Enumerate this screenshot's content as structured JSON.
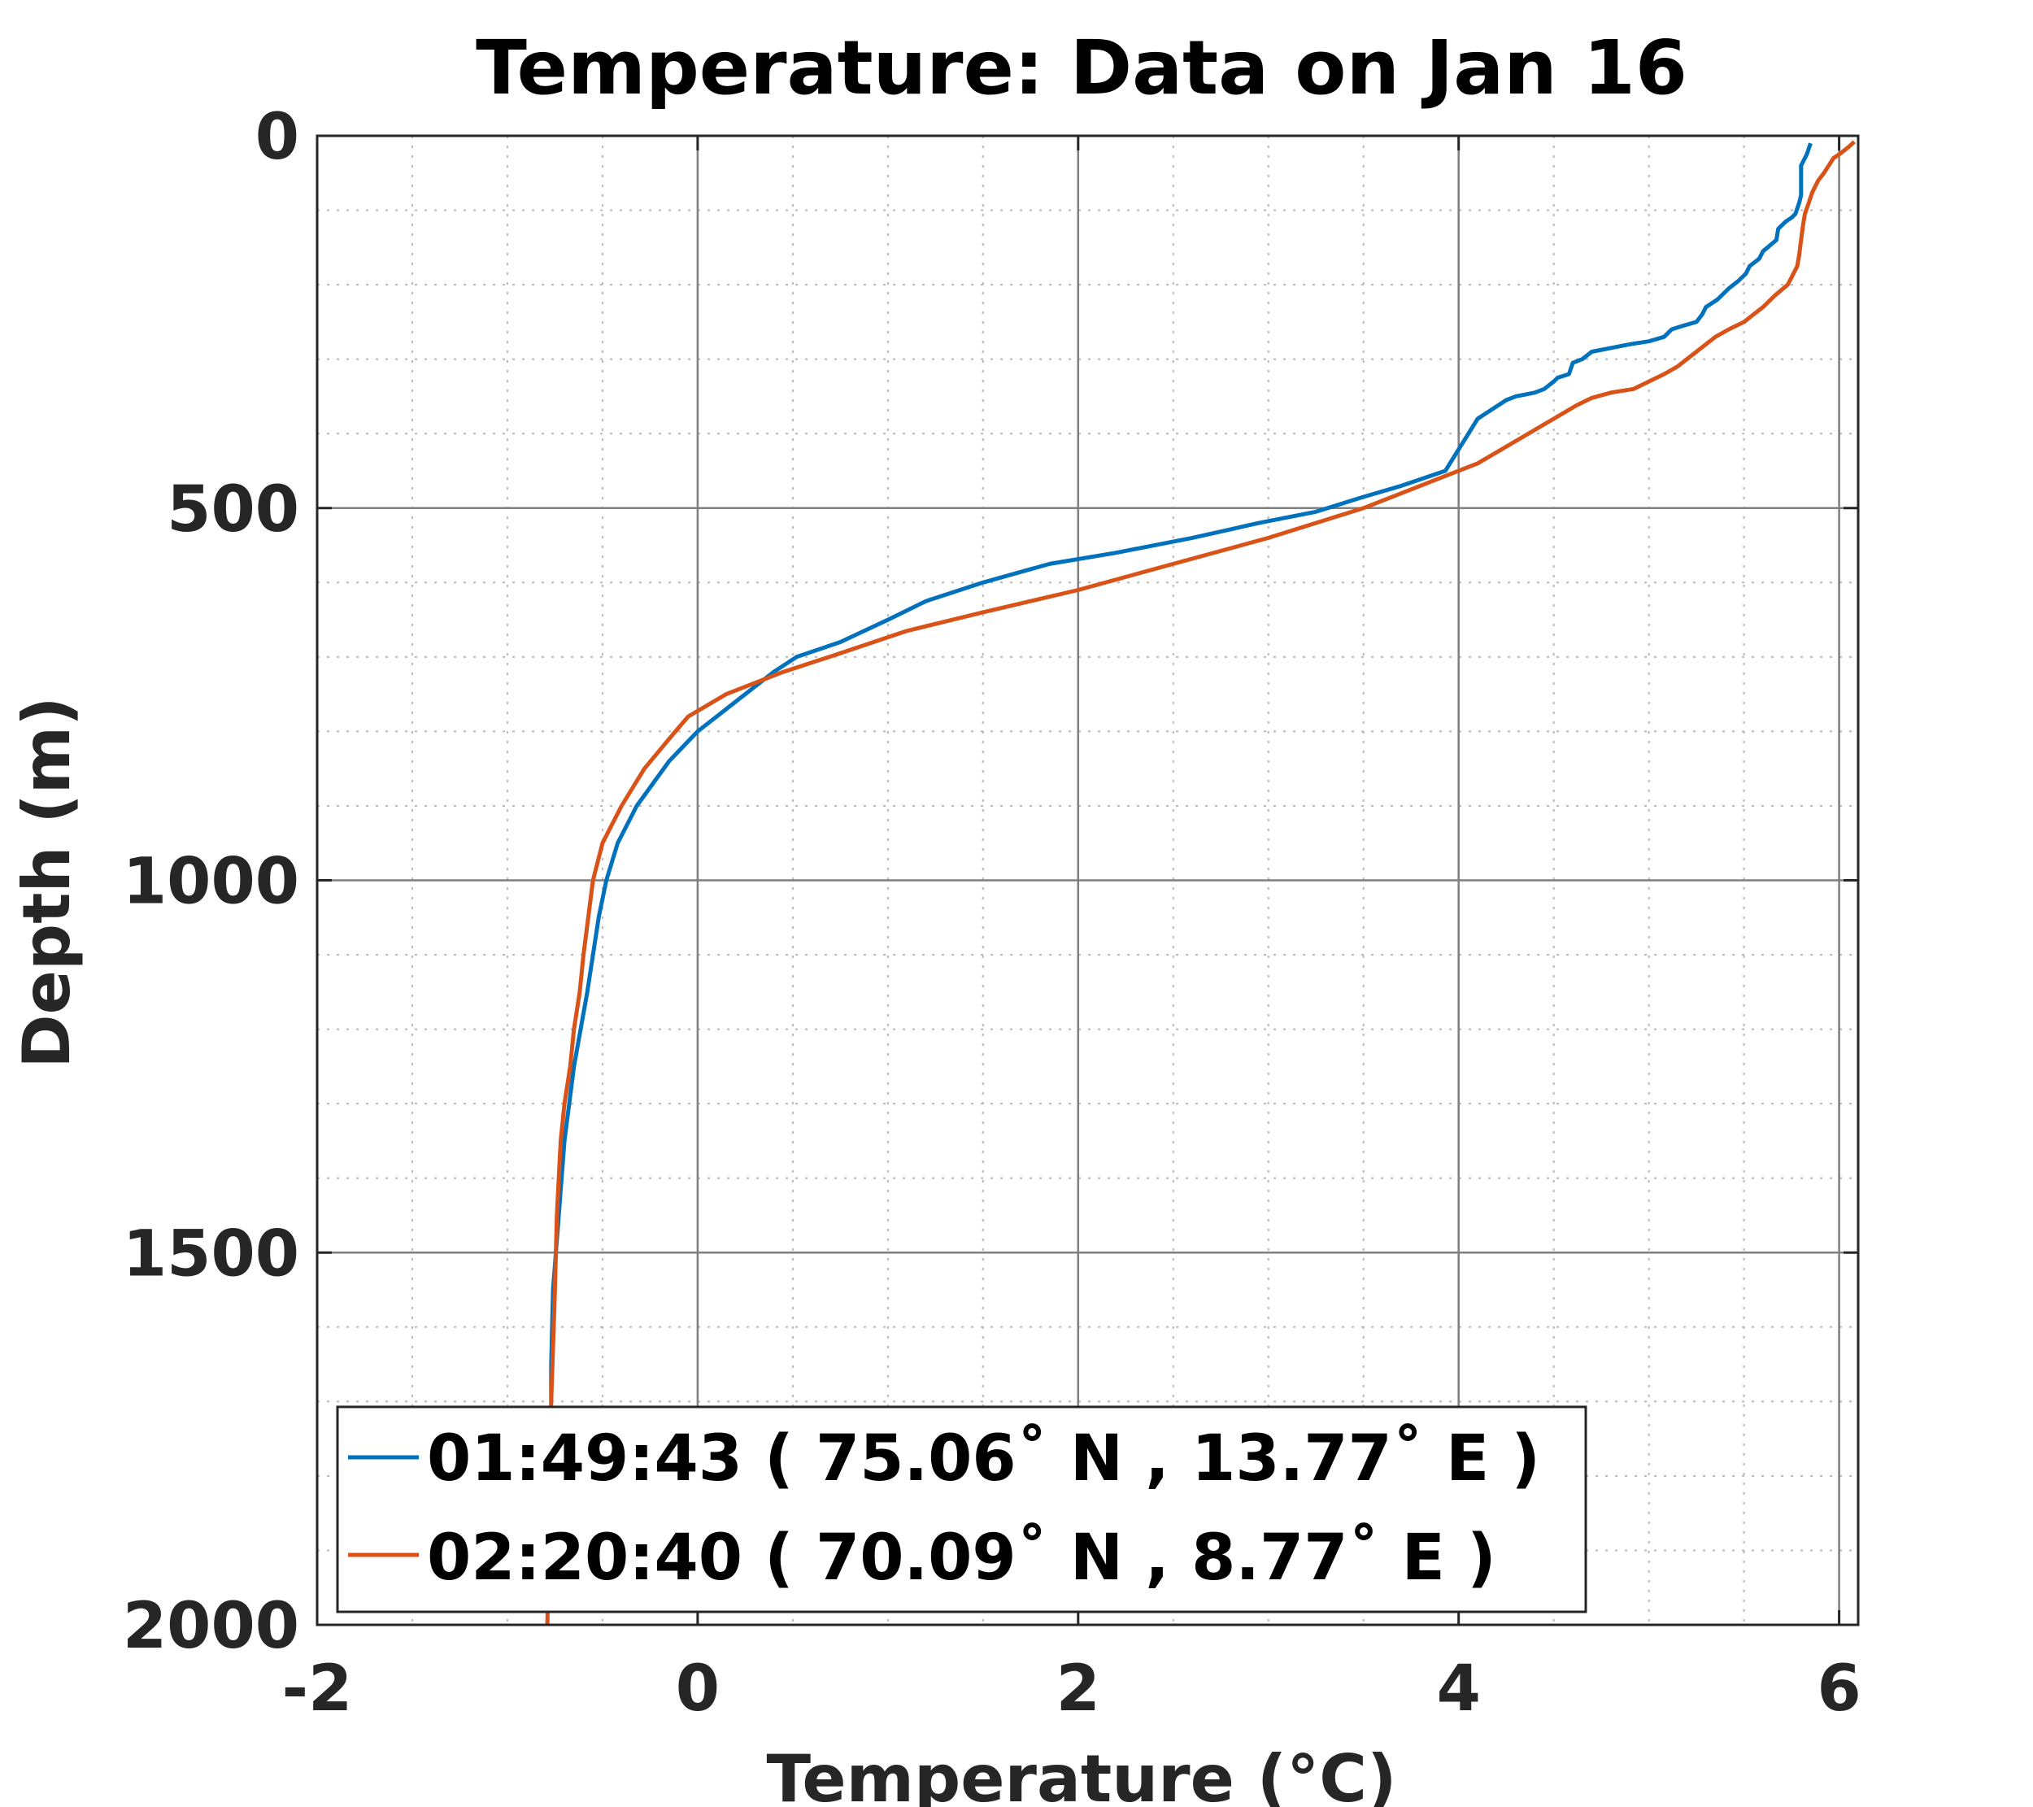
{
  "chart_data": {
    "type": "line",
    "title": "Temperature: Data on Jan 16",
    "xlabel": "Temperature (°C)",
    "ylabel": "Depth (m)",
    "xlim": [
      -2,
      6.1
    ],
    "ylim": [
      0,
      2000
    ],
    "y_reversed": true,
    "grid": true,
    "minor_grid": true,
    "x_ticks": [
      -2,
      0,
      2,
      4,
      6
    ],
    "x_tick_labels": [
      "-2",
      "0",
      "2",
      "4",
      "6"
    ],
    "y_ticks": [
      0,
      500,
      1000,
      1500,
      2000
    ],
    "y_tick_labels": [
      "0",
      "500",
      "1000",
      "1500",
      "2000"
    ],
    "legend_position": "bottom-left",
    "series": [
      {
        "name": "01:49:43 ( 75.06˚ N , 13.77˚ E )",
        "color": "#0072BD",
        "points": [
          [
            5.85,
            10
          ],
          [
            5.83,
            25
          ],
          [
            5.8,
            40
          ],
          [
            5.8,
            80
          ],
          [
            5.79,
            90
          ],
          [
            5.77,
            105
          ],
          [
            5.75,
            110
          ],
          [
            5.72,
            115
          ],
          [
            5.68,
            125
          ],
          [
            5.67,
            140
          ],
          [
            5.6,
            155
          ],
          [
            5.58,
            165
          ],
          [
            5.53,
            175
          ],
          [
            5.52,
            180
          ],
          [
            5.51,
            185
          ],
          [
            5.47,
            195
          ],
          [
            5.42,
            205
          ],
          [
            5.36,
            220
          ],
          [
            5.3,
            230
          ],
          [
            5.28,
            240
          ],
          [
            5.25,
            250
          ],
          [
            5.18,
            255
          ],
          [
            5.12,
            260
          ],
          [
            5.08,
            270
          ],
          [
            5.0,
            276
          ],
          [
            4.9,
            280
          ],
          [
            4.8,
            285
          ],
          [
            4.7,
            290
          ],
          [
            4.65,
            300
          ],
          [
            4.6,
            305
          ],
          [
            4.58,
            320
          ],
          [
            4.52,
            325
          ],
          [
            4.5,
            330
          ],
          [
            4.45,
            340
          ],
          [
            4.4,
            345
          ],
          [
            4.3,
            350
          ],
          [
            4.25,
            355
          ],
          [
            4.1,
            380
          ],
          [
            3.93,
            450
          ],
          [
            3.7,
            470
          ],
          [
            3.5,
            485
          ],
          [
            3.25,
            505
          ],
          [
            2.95,
            520
          ],
          [
            2.6,
            540
          ],
          [
            2.2,
            560
          ],
          [
            1.85,
            575
          ],
          [
            1.5,
            600
          ],
          [
            1.2,
            625
          ],
          [
            1.0,
            650
          ],
          [
            0.75,
            680
          ],
          [
            0.52,
            700
          ],
          [
            0.4,
            720
          ],
          [
            0.25,
            750
          ],
          [
            0.0,
            800
          ],
          [
            -0.15,
            840
          ],
          [
            -0.32,
            900
          ],
          [
            -0.42,
            950
          ],
          [
            -0.48,
            1000
          ],
          [
            -0.52,
            1050
          ],
          [
            -0.58,
            1150
          ],
          [
            -0.65,
            1250
          ],
          [
            -0.7,
            1350
          ],
          [
            -0.73,
            1450
          ],
          [
            -0.76,
            1550
          ],
          [
            -0.77,
            1650
          ],
          [
            -0.77,
            1700
          ]
        ]
      },
      {
        "name": "02:20:40 ( 70.09˚ N , 8.77˚ E )",
        "color": "#D95319",
        "points": [
          [
            6.08,
            8
          ],
          [
            6.05,
            15
          ],
          [
            6.0,
            25
          ],
          [
            5.97,
            30
          ],
          [
            5.92,
            50
          ],
          [
            5.89,
            60
          ],
          [
            5.86,
            75
          ],
          [
            5.84,
            90
          ],
          [
            5.82,
            105
          ],
          [
            5.81,
            120
          ],
          [
            5.8,
            140
          ],
          [
            5.79,
            160
          ],
          [
            5.78,
            175
          ],
          [
            5.76,
            185
          ],
          [
            5.73,
            200
          ],
          [
            5.66,
            215
          ],
          [
            5.6,
            230
          ],
          [
            5.55,
            240
          ],
          [
            5.5,
            250
          ],
          [
            5.42,
            260
          ],
          [
            5.35,
            270
          ],
          [
            5.3,
            280
          ],
          [
            5.25,
            290
          ],
          [
            5.2,
            300
          ],
          [
            5.15,
            310
          ],
          [
            5.08,
            320
          ],
          [
            5.0,
            330
          ],
          [
            4.92,
            340
          ],
          [
            4.8,
            345
          ],
          [
            4.7,
            352
          ],
          [
            4.62,
            362
          ],
          [
            4.5,
            380
          ],
          [
            4.3,
            410
          ],
          [
            4.1,
            440
          ],
          [
            3.9,
            460
          ],
          [
            3.7,
            480
          ],
          [
            3.5,
            500
          ],
          [
            3.0,
            540
          ],
          [
            2.5,
            575
          ],
          [
            2.0,
            610
          ],
          [
            1.5,
            640
          ],
          [
            1.1,
            665
          ],
          [
            0.75,
            695
          ],
          [
            0.45,
            720
          ],
          [
            0.15,
            750
          ],
          [
            -0.05,
            780
          ],
          [
            -0.15,
            810
          ],
          [
            -0.28,
            850
          ],
          [
            -0.4,
            900
          ],
          [
            -0.5,
            950
          ],
          [
            -0.55,
            1000
          ],
          [
            -0.6,
            1100
          ],
          [
            -0.62,
            1150
          ],
          [
            -0.65,
            1200
          ],
          [
            -0.67,
            1250
          ],
          [
            -0.7,
            1300
          ],
          [
            -0.72,
            1350
          ],
          [
            -0.74,
            1450
          ],
          [
            -0.75,
            1550
          ],
          [
            -0.77,
            1700
          ],
          [
            -0.78,
            1850
          ],
          [
            -0.79,
            2000
          ]
        ]
      }
    ]
  }
}
